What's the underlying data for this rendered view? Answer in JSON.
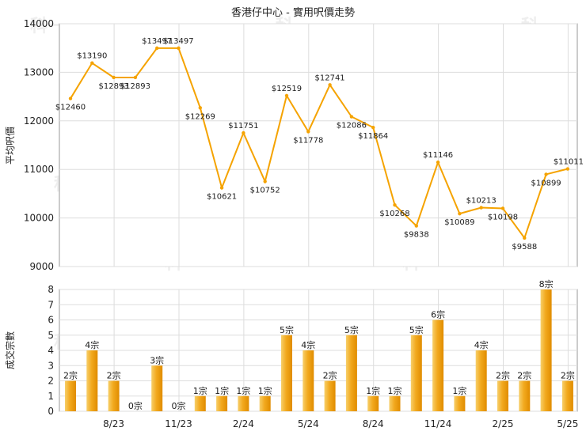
{
  "chart_data": [
    {
      "type": "line",
      "title": "香港仔中心 - 實用呎價走勢",
      "ylabel": "平均呎價",
      "ylim": [
        9000,
        14000
      ],
      "yticks": [
        9000,
        10000,
        11000,
        12000,
        13000,
        14000
      ],
      "value_prefix": "$",
      "line_color": "#f5a300",
      "values": [
        12460,
        13190,
        12893,
        12893,
        13497,
        13497,
        12269,
        10621,
        11751,
        10752,
        12519,
        11778,
        12741,
        12086,
        11864,
        10268,
        9838,
        11146,
        10089,
        10213,
        10198,
        9588,
        10899,
        11011
      ]
    },
    {
      "type": "bar",
      "ylabel": "成交宗數",
      "ylim": [
        0,
        8
      ],
      "yticks": [
        0,
        1,
        2,
        3,
        4,
        5,
        6,
        7,
        8
      ],
      "unit_suffix": "宗",
      "bar_color": "#f0a820",
      "values": [
        2,
        4,
        2,
        0,
        3,
        0,
        1,
        1,
        1,
        1,
        5,
        4,
        2,
        5,
        1,
        1,
        5,
        6,
        1,
        4,
        2,
        2,
        8,
        2
      ]
    }
  ],
  "x_tick_labels": [
    "8/23",
    "11/23",
    "2/24",
    "5/24",
    "8/24",
    "11/24",
    "2/25",
    "5/25"
  ],
  "watermark": "科一"
}
